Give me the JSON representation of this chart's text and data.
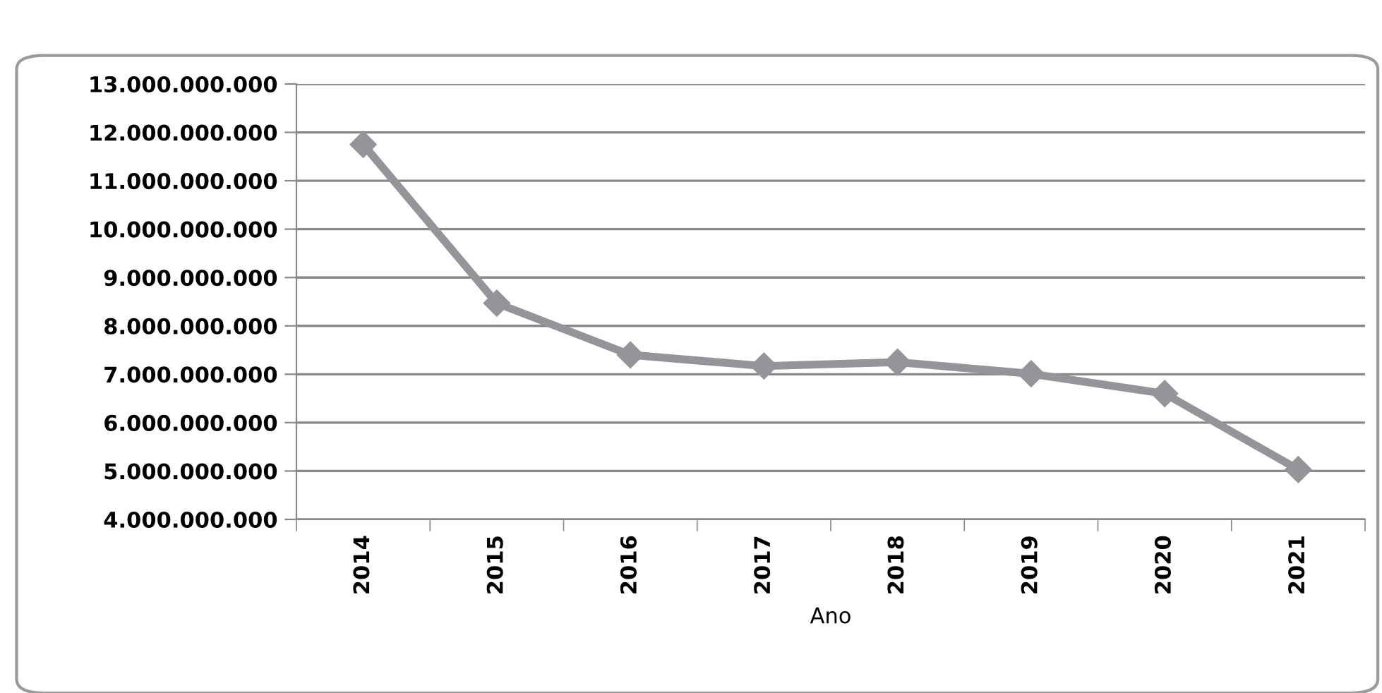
{
  "chart_data": {
    "type": "line",
    "xlabel": "Ano",
    "categories": [
      "2014",
      "2015",
      "2016",
      "2017",
      "2018",
      "2019",
      "2020",
      "2021"
    ],
    "series": [
      {
        "color": "#939598",
        "values": [
          11750000000,
          8470000000,
          7400000000,
          7170000000,
          7250000000,
          7010000000,
          6600000000,
          5030000000
        ]
      }
    ],
    "ylim": [
      4000000000,
      13000000000
    ],
    "yticks": [
      {
        "value": 4000000000,
        "label": "4.000.000.000"
      },
      {
        "value": 5000000000,
        "label": "5.000.000.000"
      },
      {
        "value": 6000000000,
        "label": "6.000.000.000"
      },
      {
        "value": 7000000000,
        "label": "7.000.000.000"
      },
      {
        "value": 8000000000,
        "label": "8.000.000.000"
      },
      {
        "value": 9000000000,
        "label": "9.000.000.000"
      },
      {
        "value": 10000000000,
        "label": "10.000.000.000"
      },
      {
        "value": 11000000000,
        "label": "11.000.000.000"
      },
      {
        "value": 12000000000,
        "label": "12.000.000.000"
      },
      {
        "value": 13000000000,
        "label": "13.000.000.000"
      }
    ],
    "grid": "y",
    "marker": "diamond",
    "line_style": "solid",
    "legend": false
  }
}
